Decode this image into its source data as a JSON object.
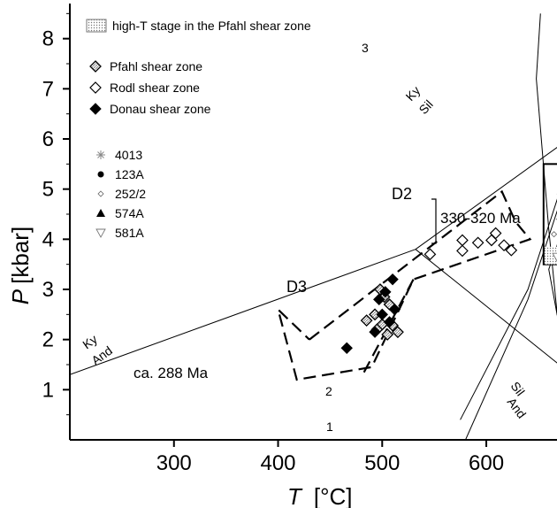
{
  "chart_data": {
    "type": "scatter",
    "title": "",
    "xlabel": "T",
    "xlabel_unit": "[°C]",
    "ylabel": "P",
    "ylabel_unit": "[kbar]",
    "xlim": [
      200,
      870
    ],
    "ylim": [
      0,
      8.7
    ],
    "x_ticks": [
      300,
      400,
      500,
      600,
      700,
      800
    ],
    "y_ticks": [
      1,
      2,
      3,
      4,
      5,
      6,
      7,
      8
    ],
    "grid": false,
    "legend_position": "top-left",
    "legend": {
      "box_label": "high-T stage in the Pfahl shear zone",
      "zones": [
        {
          "name": "Pfahl shear zone",
          "marker": "diamond-hatched"
        },
        {
          "name": "Rodl shear zone",
          "marker": "diamond-open"
        },
        {
          "name": "Donau shear zone",
          "marker": "diamond-filled"
        }
      ],
      "samples": [
        {
          "name": "4013",
          "marker": "star"
        },
        {
          "name": "123A",
          "marker": "dot"
        },
        {
          "name": "252/2",
          "marker": "small-diamond"
        },
        {
          "name": "574A",
          "marker": "triangle-up"
        },
        {
          "name": "581A",
          "marker": "triangle-down"
        }
      ]
    },
    "reaction_lines": [
      {
        "name": "Ky-Sil",
        "labels": [
          "Ky",
          "Sil"
        ],
        "points": [
          [
            532,
            3.8
          ],
          [
            860,
            8.7
          ]
        ]
      },
      {
        "name": "Ky-And",
        "labels": [
          "Ky",
          "And"
        ],
        "points": [
          [
            200,
            1.3
          ],
          [
            532,
            3.8
          ]
        ]
      },
      {
        "name": "And-Sil",
        "labels": [
          "Sil",
          "And"
        ],
        "points": [
          [
            532,
            3.8
          ],
          [
            760,
            0.0
          ]
        ]
      },
      {
        "name": "3",
        "label": "3",
        "points": [
          [
            652,
            8.5
          ],
          [
            648,
            7.2
          ],
          [
            660,
            4.2
          ],
          [
            680,
            0
          ]
        ]
      },
      {
        "name": "2",
        "label": "2",
        "points": [
          [
            575,
            0.4
          ],
          [
            640,
            3.0
          ],
          [
            687,
            6.0
          ],
          [
            748,
            8.7
          ]
        ]
      },
      {
        "name": "1",
        "label": "1",
        "points": [
          [
            580,
            0.0
          ],
          [
            640,
            2.8
          ],
          [
            707,
            7.0
          ],
          [
            738,
            8.7
          ]
        ]
      },
      {
        "name": "melt-curve",
        "label": "",
        "points": [
          [
            738,
            8.7
          ],
          [
            717,
            7.5
          ],
          [
            697,
            6.0
          ],
          [
            680,
            4.6
          ],
          [
            665,
            3.7
          ],
          [
            660,
            3.4
          ],
          [
            668,
            2.5
          ],
          [
            690,
            1.5
          ],
          [
            720,
            0.9
          ],
          [
            760,
            0.45
          ],
          [
            820,
            0.15
          ],
          [
            860,
            0.1
          ]
        ]
      }
    ],
    "field_boxes": [
      {
        "name": "D2 box",
        "label": "D2",
        "xlim": [
          655,
          728
        ],
        "ylim": [
          3.5,
          5.5
        ]
      }
    ],
    "paths": [
      {
        "name": "D3",
        "label": "D3",
        "style": "dashed-arrow",
        "points": [
          [
            430,
            2.0
          ],
          [
            615,
            4.95
          ],
          [
            628,
            4.35
          ],
          [
            642,
            4.0
          ],
          [
            530,
            3.2
          ],
          [
            490,
            1.45
          ],
          [
            418,
            1.2
          ],
          [
            400,
            2.6
          ],
          [
            430,
            2.0
          ]
        ],
        "arrow_tip": [
          480,
          1.25
        ]
      }
    ],
    "annotations": [
      {
        "text": "330-320 Ma",
        "x": 742,
        "y": 4.4
      },
      {
        "text": "ca. 288 Ma",
        "x": 315,
        "y": 0.85
      },
      {
        "text": "D3",
        "x": 547,
        "y": 3.0
      },
      {
        "text": "D2",
        "x": 679,
        "y": 4.95
      }
    ],
    "series": [
      {
        "name": "Pfahl shear zone",
        "marker": "diamond-hatched",
        "points": [
          [
            498,
            3.0
          ],
          [
            502,
            2.85
          ],
          [
            507,
            2.7
          ],
          [
            493,
            2.5
          ],
          [
            485,
            2.38
          ],
          [
            500,
            2.3
          ],
          [
            510,
            2.28
          ],
          [
            495,
            2.2
          ],
          [
            505,
            2.1
          ],
          [
            515,
            2.15
          ]
        ]
      },
      {
        "name": "Rodl shear zone",
        "marker": "diamond-open",
        "points": [
          [
            546,
            3.7
          ],
          [
            577,
            3.77
          ],
          [
            577,
            3.98
          ],
          [
            592,
            3.93
          ],
          [
            605,
            3.98
          ],
          [
            609,
            4.12
          ],
          [
            617,
            3.88
          ],
          [
            624,
            3.78
          ]
        ]
      },
      {
        "name": "Donau shear zone",
        "marker": "diamond-filled",
        "points": [
          [
            510,
            3.2
          ],
          [
            503,
            2.95
          ],
          [
            497,
            2.8
          ],
          [
            512,
            2.6
          ],
          [
            500,
            2.5
          ],
          [
            507,
            2.35
          ],
          [
            493,
            2.15
          ],
          [
            466,
            1.83
          ]
        ]
      },
      {
        "name": "4013",
        "marker": "star",
        "points": [
          [
            700,
            4.3
          ],
          [
            715,
            4.55
          ],
          [
            690,
            4.1
          ],
          [
            710,
            3.9
          ],
          [
            725,
            4.2
          ],
          [
            672,
            4.9
          ],
          [
            695,
            4.7
          ],
          [
            705,
            5.1
          ],
          [
            685,
            4.4
          ],
          [
            720,
            4.0
          ],
          [
            678,
            3.8
          ],
          [
            712,
            4.8
          ]
        ]
      },
      {
        "name": "123A",
        "marker": "dot",
        "points": [
          [
            692,
            4.5
          ],
          [
            705,
            4.35
          ],
          [
            698,
            4.0
          ],
          [
            710,
            4.55
          ],
          [
            688,
            4.25
          ],
          [
            703,
            3.75
          ],
          [
            690,
            4.65
          ],
          [
            715,
            4.3
          ],
          [
            700,
            3.95
          ],
          [
            683,
            4.0
          ],
          [
            707,
            4.15
          ]
        ]
      },
      {
        "name": "252/2",
        "marker": "small-diamond",
        "points": [
          [
            676,
            4.8
          ],
          [
            688,
            5.0
          ],
          [
            670,
            4.4
          ],
          [
            697,
            5.2
          ],
          [
            718,
            4.7
          ],
          [
            725,
            4.45
          ],
          [
            680,
            3.6
          ],
          [
            712,
            5.35
          ],
          [
            665,
            4.1
          ],
          [
            722,
            3.75
          ],
          [
            700,
            4.9
          ]
        ]
      },
      {
        "name": "574A",
        "marker": "triangle-up",
        "points": [
          [
            693,
            5.35
          ],
          [
            700,
            5.0
          ],
          [
            705,
            4.7
          ],
          [
            695,
            4.55
          ],
          [
            710,
            4.6
          ],
          [
            690,
            4.4
          ],
          [
            703,
            4.25
          ],
          [
            698,
            3.9
          ],
          [
            712,
            4.0
          ],
          [
            686,
            3.75
          ],
          [
            715,
            4.45
          ],
          [
            707,
            4.85
          ]
        ]
      },
      {
        "name": "581A",
        "marker": "triangle-down",
        "points": [
          [
            668,
            3.65
          ],
          [
            676,
            3.55
          ],
          [
            690,
            3.7
          ],
          [
            700,
            3.6
          ],
          [
            712,
            3.58
          ],
          [
            722,
            3.52
          ],
          [
            684,
            3.62
          ],
          [
            695,
            3.5
          ],
          [
            707,
            3.68
          ],
          [
            672,
            3.8
          ]
        ]
      }
    ]
  }
}
